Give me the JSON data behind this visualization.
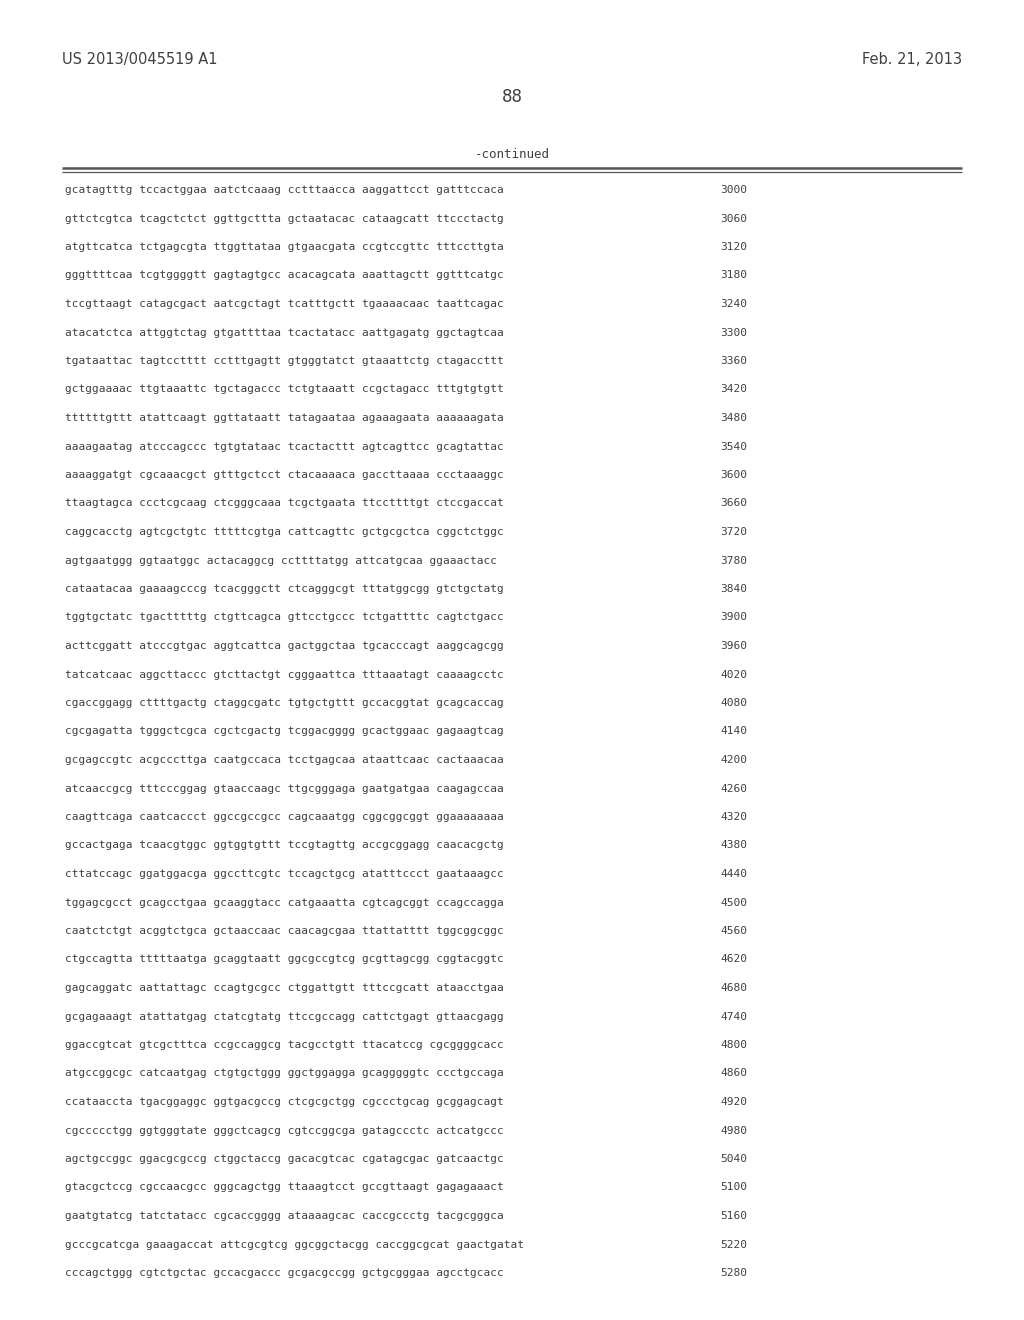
{
  "header_left": "US 2013/0045519 A1",
  "header_right": "Feb. 21, 2013",
  "page_number": "88",
  "continued_label": "-continued",
  "background_color": "#ffffff",
  "text_color": "#404040",
  "lines": [
    {
      "seq": "gcatagtttg tccactggaa aatctcaaag cctttaacca aaggattcct gatttccaca",
      "num": "3000"
    },
    {
      "seq": "gttctcgtca tcagctctct ggttgcttta gctaatacac cataagcatt ttccctactg",
      "num": "3060"
    },
    {
      "seq": "atgttcatca tctgagcgta ttggttataa gtgaacgata ccgtccgttc tttccttgta",
      "num": "3120"
    },
    {
      "seq": "gggttttcaa tcgtggggtt gagtagtgcc acacagcata aaattagctt ggtttcatgc",
      "num": "3180"
    },
    {
      "seq": "tccgttaagt catagcgact aatcgctagt tcatttgctt tgaaaacaac taattcagac",
      "num": "3240"
    },
    {
      "seq": "atacatctca attggtctag gtgattttaa tcactatacc aattgagatg ggctagtcaa",
      "num": "3300"
    },
    {
      "seq": "tgataattac tagtcctttt cctttgagtt gtgggtatct gtaaattctg ctagaccttt",
      "num": "3360"
    },
    {
      "seq": "gctggaaaac ttgtaaattc tgctagaccc tctgtaaatt ccgctagacc tttgtgtgtt",
      "num": "3420"
    },
    {
      "seq": "ttttttgttt atattcaagt ggttataatt tatagaataa agaaagaata aaaaaagata",
      "num": "3480"
    },
    {
      "seq": "aaaagaatag atcccagccc tgtgtataac tcactacttt agtcagttcc gcagtattac",
      "num": "3540"
    },
    {
      "seq": "aaaaggatgt cgcaaacgct gtttgctcct ctacaaaaca gaccttaaaa ccctaaaggc",
      "num": "3600"
    },
    {
      "seq": "ttaagtagca ccctcgcaag ctcgggcaaa tcgctgaata ttccttttgt ctccgaccat",
      "num": "3660"
    },
    {
      "seq": "caggcacctg agtcgctgtc tttttcgtga cattcagttc gctgcgctca cggctctggc",
      "num": "3720"
    },
    {
      "seq": "agtgaatggg ggtaatggc actacaggcg ccttttatgg attcatgcaa ggaaactacc",
      "num": "3780"
    },
    {
      "seq": "cataatacaa gaaaagcccg tcacgggctt ctcagggcgt tttatggcgg gtctgctatg",
      "num": "3840"
    },
    {
      "seq": "tggtgctatc tgactttttg ctgttcagca gttcctgccc tctgattttc cagtctgacc",
      "num": "3900"
    },
    {
      "seq": "acttcggatt atcccgtgac aggtcattca gactggctaa tgcacccagt aaggcagcgg",
      "num": "3960"
    },
    {
      "seq": "tatcatcaac aggcttaccc gtcttactgt cgggaattca tttaaatagt caaaagcctc",
      "num": "4020"
    },
    {
      "seq": "cgaccggagg cttttgactg ctaggcgatc tgtgctgttt gccacggtat gcagcaccag",
      "num": "4080"
    },
    {
      "seq": "cgcgagatta tgggctcgca cgctcgactg tcggacgggg gcactggaac gagaagtcag",
      "num": "4140"
    },
    {
      "seq": "gcgagccgtc acgcccttga caatgccaca tcctgagcaa ataattcaac cactaaacaa",
      "num": "4200"
    },
    {
      "seq": "atcaaccgcg tttcccggag gtaaccaagc ttgcgggaga gaatgatgaa caagagccaa",
      "num": "4260"
    },
    {
      "seq": "caagttcaga caatcaccct ggccgccgcc cagcaaatgg cggcggcggt ggaaaaaaaa",
      "num": "4320"
    },
    {
      "seq": "gccactgaga tcaacgtggc ggtggtgttt tccgtagttg accgcggagg caacacgctg",
      "num": "4380"
    },
    {
      "seq": "cttatccagc ggatggacga ggccttcgtc tccagctgcg atatttccct gaataaagcc",
      "num": "4440"
    },
    {
      "seq": "tggagcgcct gcagcctgaa gcaaggtacc catgaaatta cgtcagcggt ccagccagga",
      "num": "4500"
    },
    {
      "seq": "caatctctgt acggtctgca gctaaccaac caacagcgaa ttattatttt tggcggcggc",
      "num": "4560"
    },
    {
      "seq": "ctgccagtta tttttaatga gcaggtaatt ggcgccgtcg gcgttagcgg cggtacggtc",
      "num": "4620"
    },
    {
      "seq": "gagcaggatc aattattagc ccagtgcgcc ctggattgtt tttccgcatt ataacctgaa",
      "num": "4680"
    },
    {
      "seq": "gcgagaaagt atattatgag ctatcgtatg ttccgccagg cattctgagt gttaacgagg",
      "num": "4740"
    },
    {
      "seq": "ggaccgtcat gtcgctttca ccgccaggcg tacgcctgtt ttacatccg cgcggggcacc",
      "num": "4800"
    },
    {
      "seq": "atgccggcgc catcaatgag ctgtgctggg ggctggagga gcagggggtc ccctgccaga",
      "num": "4860"
    },
    {
      "seq": "ccataaccta tgacggaggc ggtgacgccg ctcgcgctgg cgccctgcag gcggagcagt",
      "num": "4920"
    },
    {
      "seq": "cgccccctgg ggtgggtate gggctcagcg cgtccggcga gatagccctc actcatgccc",
      "num": "4980"
    },
    {
      "seq": "agctgccggc ggacgcgccg ctggctaccg gacacgtcac cgatagcgac gatcaactgc",
      "num": "5040"
    },
    {
      "seq": "gtacgctccg cgccaacgcc gggcagctgg ttaaagtcct gccgttaagt gagagaaact",
      "num": "5100"
    },
    {
      "seq": "gaatgtatcg tatctatacc cgcaccgggg ataaaagcac caccgccctg tacgcgggca",
      "num": "5160"
    },
    {
      "seq": "gcccgcatcga gaaagaccat attcgcgtcg ggcggctacgg caccggcgcat gaactgatat",
      "num": "5220"
    },
    {
      "seq": "cccagctggg cgtctgctac gccacgaccc gcgacgccgg gctgcgggaa agcctgcacc",
      "num": "5280"
    }
  ]
}
